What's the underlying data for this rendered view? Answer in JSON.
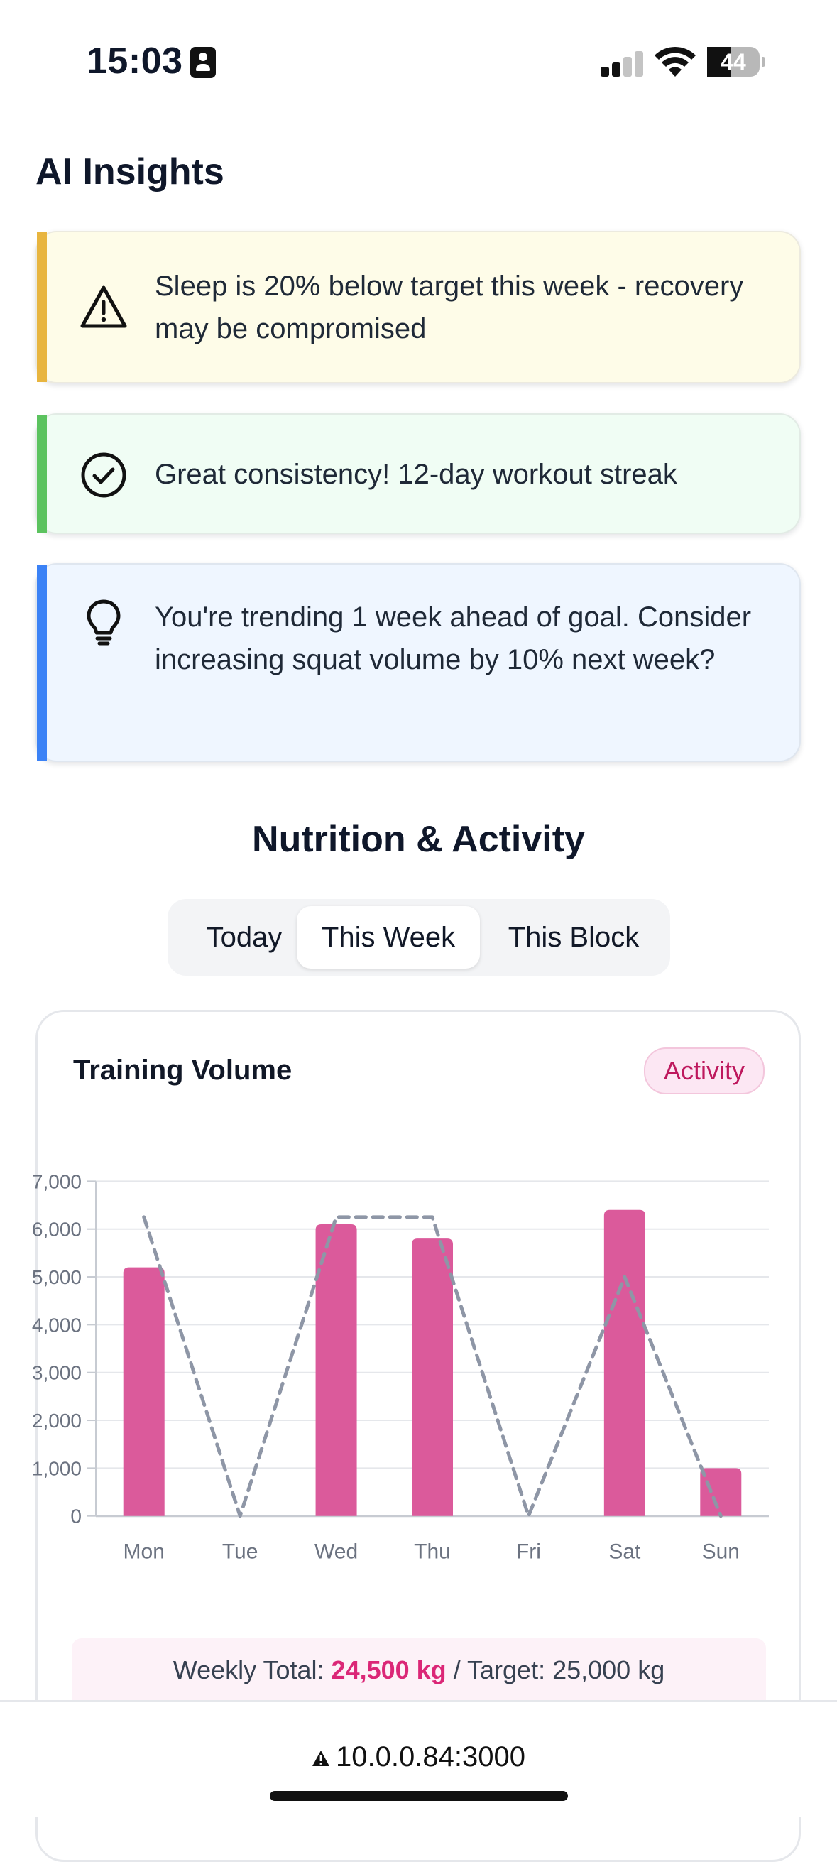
{
  "status_bar": {
    "time": "15:03",
    "battery": "44",
    "battery_level": 0.44,
    "signal_bars_active": 2,
    "signal_bars_total": 4
  },
  "insights": {
    "title": "AI Insights",
    "items": [
      {
        "type": "warning",
        "icon": "warning-triangle-icon",
        "accent": "#e8b53f",
        "text": "Sleep is 20% below target this week - recovery may be compromised"
      },
      {
        "type": "success",
        "icon": "check-circle-icon",
        "accent": "#5cc35f",
        "text": "Great consistency! 12-day workout streak"
      },
      {
        "type": "tip",
        "icon": "lightbulb-icon",
        "accent": "#3b82f6",
        "text": "You're trending 1 week ahead of goal. Consider increasing squat volume by 10% next week?"
      }
    ]
  },
  "nutrition": {
    "title": "Nutrition & Activity",
    "tabs": [
      {
        "label": "Today",
        "selected": false
      },
      {
        "label": "This Week",
        "selected": true
      },
      {
        "label": "This Block",
        "selected": false
      }
    ]
  },
  "chart_card": {
    "title": "Training Volume",
    "badge": "Activity",
    "accent": "#db5a9b",
    "total_prefix": "Weekly Total: ",
    "total_value": "24,500 kg",
    "total_suffix": " / Target: 25,000 kg"
  },
  "chart_data": {
    "type": "bar",
    "categories": [
      "Mon",
      "Tue",
      "Wed",
      "Thu",
      "Fri",
      "Sat",
      "Sun"
    ],
    "series": [
      {
        "type": "bar",
        "values": [
          5200,
          0,
          6100,
          5800,
          0,
          6400,
          1000
        ],
        "color": "#db5a9b"
      },
      {
        "type": "line",
        "style": "dashed",
        "values": [
          6250,
          0,
          6250,
          6250,
          0,
          5000,
          0
        ],
        "color": "#8e96a6"
      }
    ],
    "ylim": [
      0,
      7000
    ],
    "yticks": [
      "0",
      "1,000",
      "2,000",
      "3,000",
      "4,000",
      "5,000",
      "6,000",
      "7,000"
    ],
    "ytick_values": [
      0,
      1000,
      2000,
      3000,
      4000,
      5000,
      6000,
      7000
    ],
    "grid": true
  },
  "browser": {
    "url": "10.0.0.84:3000"
  }
}
